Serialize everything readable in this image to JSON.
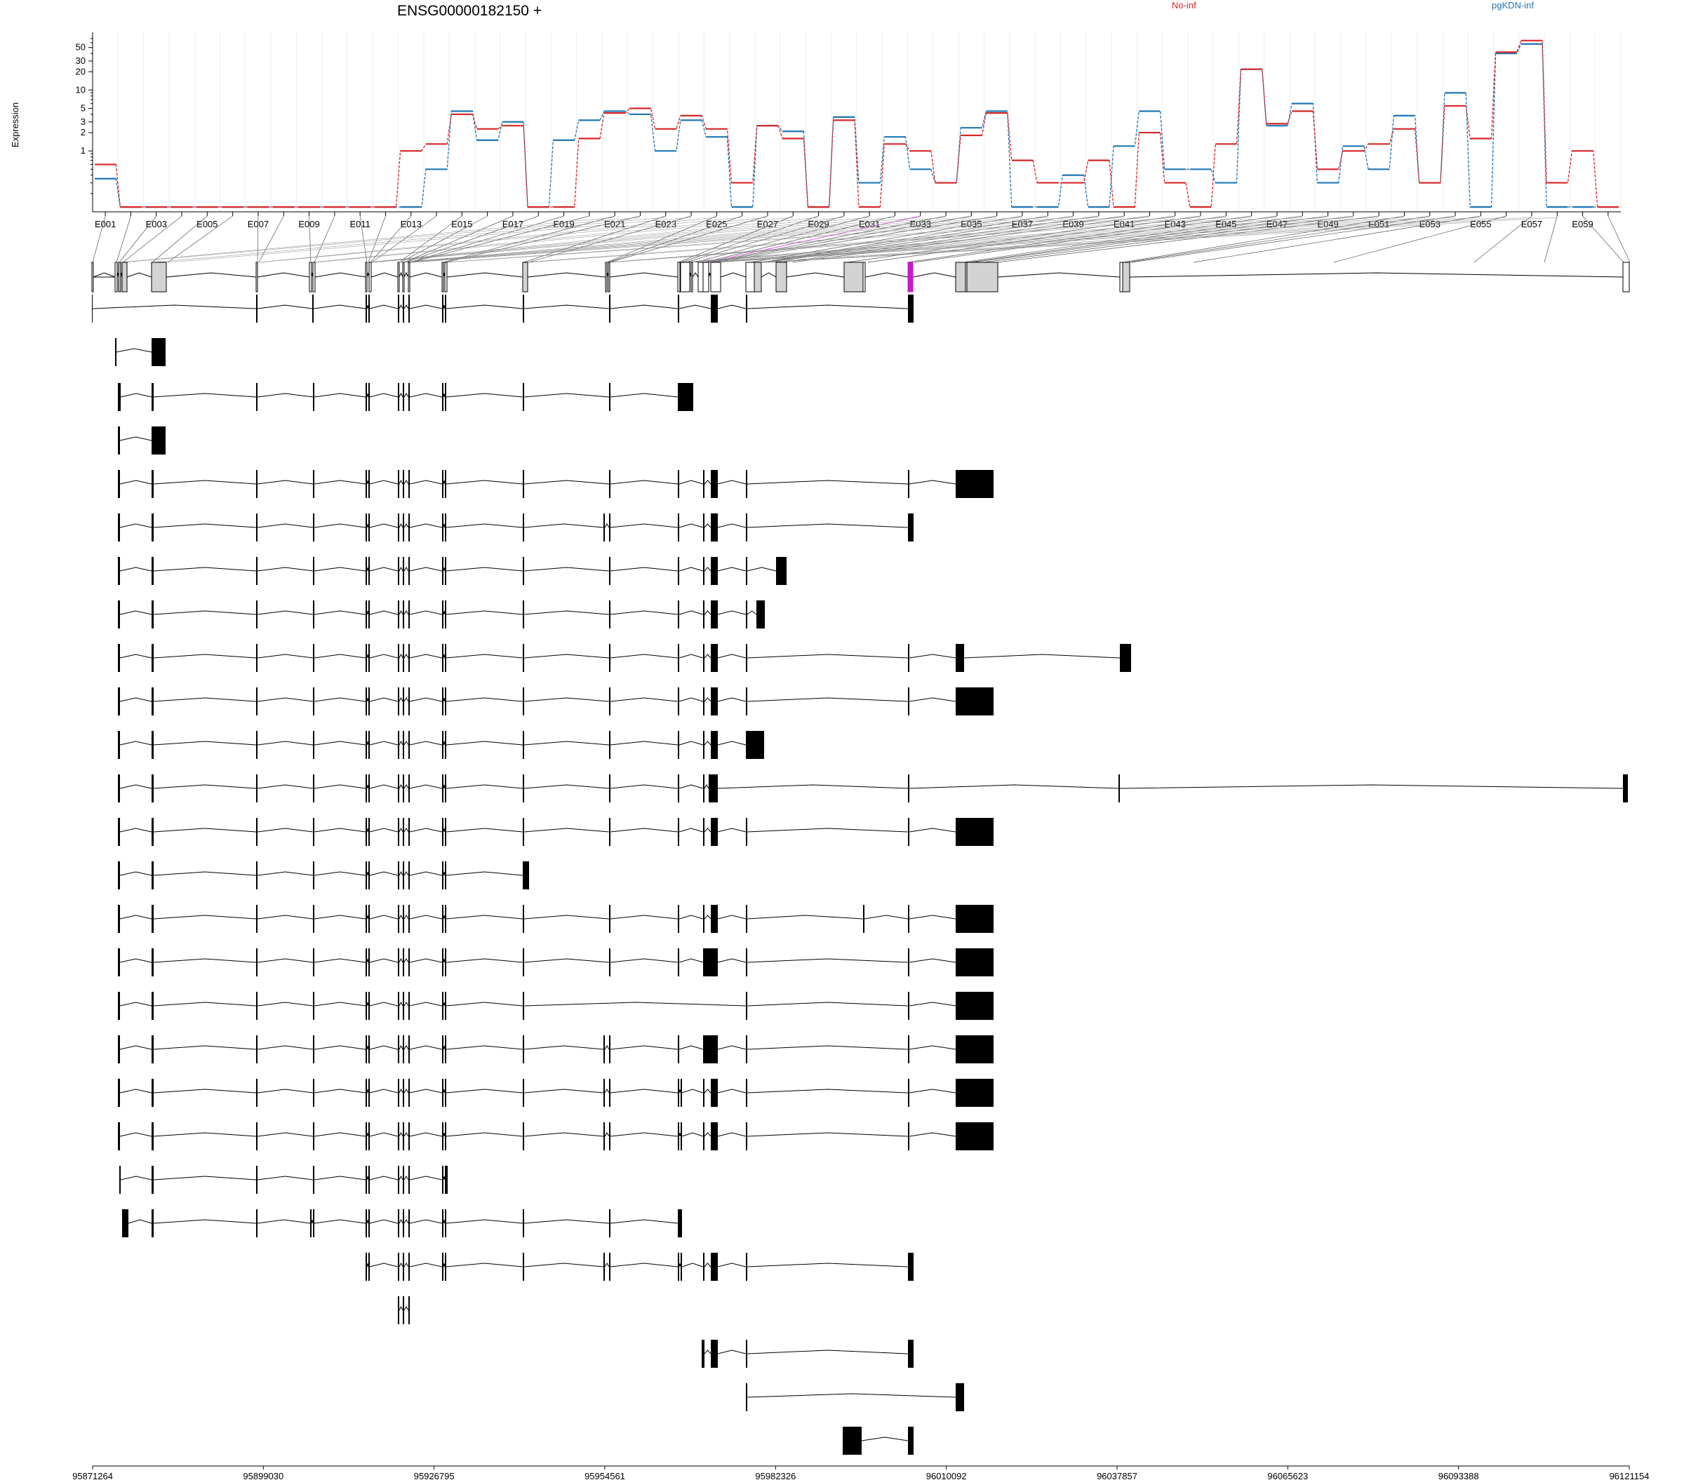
{
  "title": "ENSG00000182150 +",
  "colors": {
    "No-inf": "#d62728",
    "pgKDN-inf": "#1f77b4",
    "exon_fill": "#d3d3d3",
    "highlight_exon": "#c71cc7",
    "transcript_exon": "#000000"
  },
  "chart_data": {
    "type": "line",
    "title": "ENSG00000182150 +",
    "ylabel": "Expression",
    "xlabel": "",
    "yscale": "log",
    "ylim": [
      0.1,
      80
    ],
    "ytick_labels": [
      "1",
      "2",
      "3",
      "5",
      "10",
      "20",
      "30",
      "50"
    ],
    "yticks": [
      1,
      2,
      3,
      5,
      10,
      20,
      30,
      50
    ],
    "grid": "vertical",
    "legend_position": "top",
    "x_tick_labels": [
      "E001",
      "E003",
      "E005",
      "E007",
      "E009",
      "E011",
      "E013",
      "E015",
      "E017",
      "E019",
      "E021",
      "E023",
      "E025",
      "E027",
      "E029",
      "E031",
      "E033",
      "E035",
      "E037",
      "E039",
      "E041",
      "E043",
      "E045",
      "E047",
      "E049",
      "E051",
      "E053",
      "E055",
      "E057",
      "E059"
    ],
    "categories": [
      "E001",
      "E002",
      "E003",
      "E004",
      "E005",
      "E006",
      "E007",
      "E008",
      "E009",
      "E010",
      "E011",
      "E012",
      "E013",
      "E014",
      "E015",
      "E016",
      "E017",
      "E018",
      "E019",
      "E020",
      "E021",
      "E022",
      "E023",
      "E024",
      "E025",
      "E026",
      "E027",
      "E028",
      "E029",
      "E030",
      "E031",
      "E032",
      "E033",
      "E034",
      "E035",
      "E036",
      "E037",
      "E038",
      "E039",
      "E040",
      "E041",
      "E042",
      "E043",
      "E044",
      "E045",
      "E046",
      "E047",
      "E048",
      "E049",
      "E050",
      "E051",
      "E052",
      "E053",
      "E054",
      "E055",
      "E056",
      "E057",
      "E058",
      "E059",
      "E060"
    ],
    "series": [
      {
        "name": "No-inf",
        "color": "#d62728",
        "values": [
          0.6,
          0.12,
          0.12,
          0.12,
          0.12,
          0.12,
          0.12,
          0.12,
          0.12,
          0.12,
          0.12,
          0.12,
          1.0,
          1.3,
          4.0,
          2.3,
          2.6,
          0.12,
          0.12,
          1.6,
          4.2,
          5.0,
          2.3,
          3.8,
          2.3,
          0.3,
          2.6,
          1.6,
          0.12,
          3.2,
          0.12,
          1.3,
          1.0,
          0.3,
          1.8,
          4.2,
          0.7,
          0.3,
          0.3,
          0.7,
          0.12,
          2.0,
          0.3,
          0.12,
          1.3,
          22,
          2.8,
          4.5,
          0.5,
          1.0,
          1.3,
          2.3,
          0.3,
          5.5,
          1.6,
          42,
          65,
          0.3,
          1.0,
          0.12
        ]
      },
      {
        "name": "pgKDN-inf",
        "color": "#1f77b4",
        "values": [
          0.35,
          0.12,
          0.12,
          0.12,
          0.12,
          0.12,
          0.12,
          0.12,
          0.12,
          0.12,
          0.12,
          0.12,
          0.12,
          0.5,
          4.5,
          1.5,
          3.0,
          0.12,
          1.5,
          3.2,
          4.5,
          4.0,
          1.0,
          3.2,
          1.7,
          0.12,
          2.6,
          2.1,
          0.12,
          3.6,
          0.3,
          1.7,
          0.5,
          0.3,
          2.4,
          4.5,
          0.12,
          0.12,
          0.4,
          0.12,
          1.2,
          4.5,
          0.5,
          0.5,
          0.3,
          22,
          2.6,
          6.0,
          0.3,
          1.2,
          0.5,
          3.8,
          0.3,
          9.0,
          0.12,
          40,
          57,
          0.12,
          0.12,
          0.12
        ]
      }
    ],
    "highlight_exon": "E033",
    "genome_axis": {
      "tick_labels": [
        "95871264",
        "95899030",
        "95926795",
        "95954561",
        "95982326",
        "96010092",
        "96037857",
        "96065623",
        "96093388",
        "96121154"
      ],
      "range": [
        95871264,
        96121154
      ]
    }
  },
  "legend": {
    "no_inf": "No-inf",
    "pgkdn_inf": "pgKDN-inf"
  }
}
